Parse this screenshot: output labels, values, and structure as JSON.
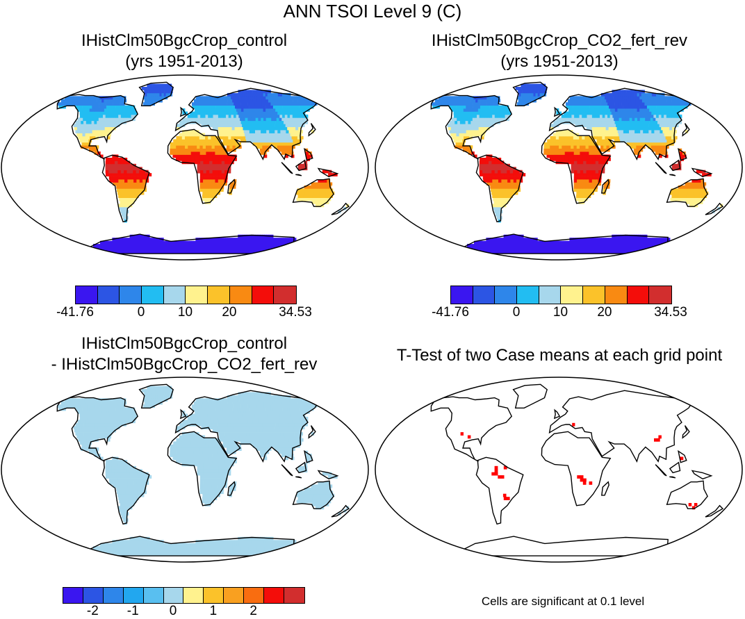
{
  "figure_title": "ANN TSOI Level 9 (C)",
  "panels": [
    {
      "id": "control",
      "title_line1": "IHistClm50BgcCrop_control",
      "title_line2": "(yrs 1951-2013)"
    },
    {
      "id": "co2",
      "title_line1": "IHistClm50BgcCrop_CO2_fert_rev",
      "title_line2": "(yrs 1951-2013)"
    },
    {
      "id": "diff",
      "title_line1": "IHistClm50BgcCrop_control",
      "title_line2": "- IHistClm50BgcCrop_CO2_fert_rev"
    },
    {
      "id": "ttest",
      "title_line1": "T-Test of two Case means at each grid point",
      "title_line2": ""
    }
  ],
  "colorbar_abs": {
    "colors": [
      "#3a16f0",
      "#2c55e4",
      "#2e86ea",
      "#22bdf2",
      "#a7d7ec",
      "#fff28e",
      "#fbc22a",
      "#f98a12",
      "#f40d0a",
      "#d22e2e"
    ],
    "labels": [
      "-41.76",
      "0",
      "10",
      "20",
      "34.53"
    ],
    "label_positions": [
      0,
      3,
      5,
      7,
      10
    ]
  },
  "colorbar_diff": {
    "colors": [
      "#3a16f0",
      "#2c55e4",
      "#2e86ea",
      "#22a7ef",
      "#59bff0",
      "#a7d7ec",
      "#fff28e",
      "#fbc22a",
      "#f9a020",
      "#f96d10",
      "#f40d0a",
      "#d22e2e"
    ],
    "labels": [
      "-2",
      "-1",
      "0",
      "1",
      "2"
    ],
    "label_positions": [
      1.5,
      3.5,
      5.5,
      7.5,
      9.5
    ]
  },
  "significance_note": "Cells are significant at 0.1 level"
}
